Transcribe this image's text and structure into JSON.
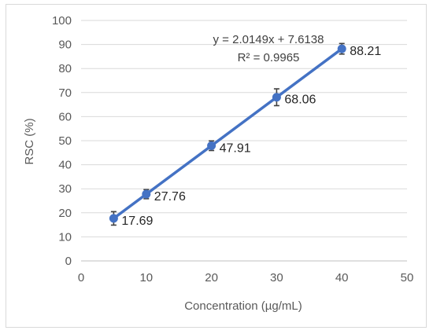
{
  "chart_data": {
    "type": "scatter",
    "xlabel": "Concentration (µg/mL)",
    "ylabel": "RSC (%)",
    "xlim": [
      0,
      50
    ],
    "ylim": [
      0,
      100
    ],
    "xticks": [
      0,
      10,
      20,
      30,
      40,
      50
    ],
    "yticks": [
      0,
      10,
      20,
      30,
      40,
      50,
      60,
      70,
      80,
      90,
      100
    ],
    "grid": "horizontal",
    "series": [
      {
        "x": [
          5,
          10,
          20,
          30,
          40
        ],
        "y": [
          17.69,
          27.76,
          47.91,
          68.06,
          88.21
        ],
        "error": [
          2.8,
          1.9,
          2.0,
          3.5,
          2.2
        ],
        "data_labels": [
          "17.69",
          "27.76",
          "47.91",
          "68.06",
          "88.21"
        ],
        "color": "#4472c4"
      }
    ],
    "trendline": {
      "type": "linear",
      "slope": 2.0149,
      "intercept": 7.6138,
      "equation": "y = 2.0149x + 7.6138",
      "r_squared": "R² = 0.9965",
      "color": "#4472c4"
    },
    "error_bar_color": "#404040",
    "gridline_color": "#d9d9d9"
  }
}
